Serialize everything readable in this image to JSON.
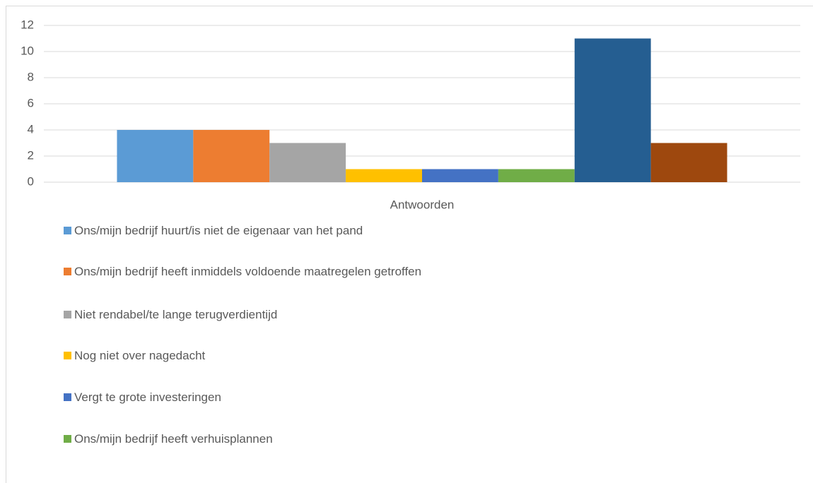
{
  "chart_data": {
    "type": "bar",
    "categories": [
      "Antwoorden"
    ],
    "series": [
      {
        "name": "Ons/mijn bedrijf huurt/is niet de eigenaar van het pand",
        "color": "#5b9bd5",
        "values": [
          4
        ]
      },
      {
        "name": "Ons/mijn bedrijf heeft inmiddels voldoende maatregelen getroffen",
        "color": "#ed7d31",
        "values": [
          4
        ]
      },
      {
        "name": "Niet rendabel/te lange terugverdientijd",
        "color": "#a5a5a5",
        "values": [
          3
        ]
      },
      {
        "name": "Nog niet over nagedacht",
        "color": "#ffc000",
        "values": [
          1
        ]
      },
      {
        "name": "Vergt te grote investeringen",
        "color": "#4472c4",
        "values": [
          1
        ]
      },
      {
        "name": "Ons/mijn bedrijf heeft verhuisplannen",
        "color": "#70ad47",
        "values": [
          1
        ]
      },
      {
        "color": "#255e91",
        "values": [
          11
        ]
      },
      {
        "color": "#9e480e",
        "values": [
          3
        ]
      }
    ],
    "ylim": [
      0,
      12
    ],
    "yticks": [
      0,
      2,
      4,
      6,
      8,
      10,
      12
    ],
    "grid": true
  }
}
